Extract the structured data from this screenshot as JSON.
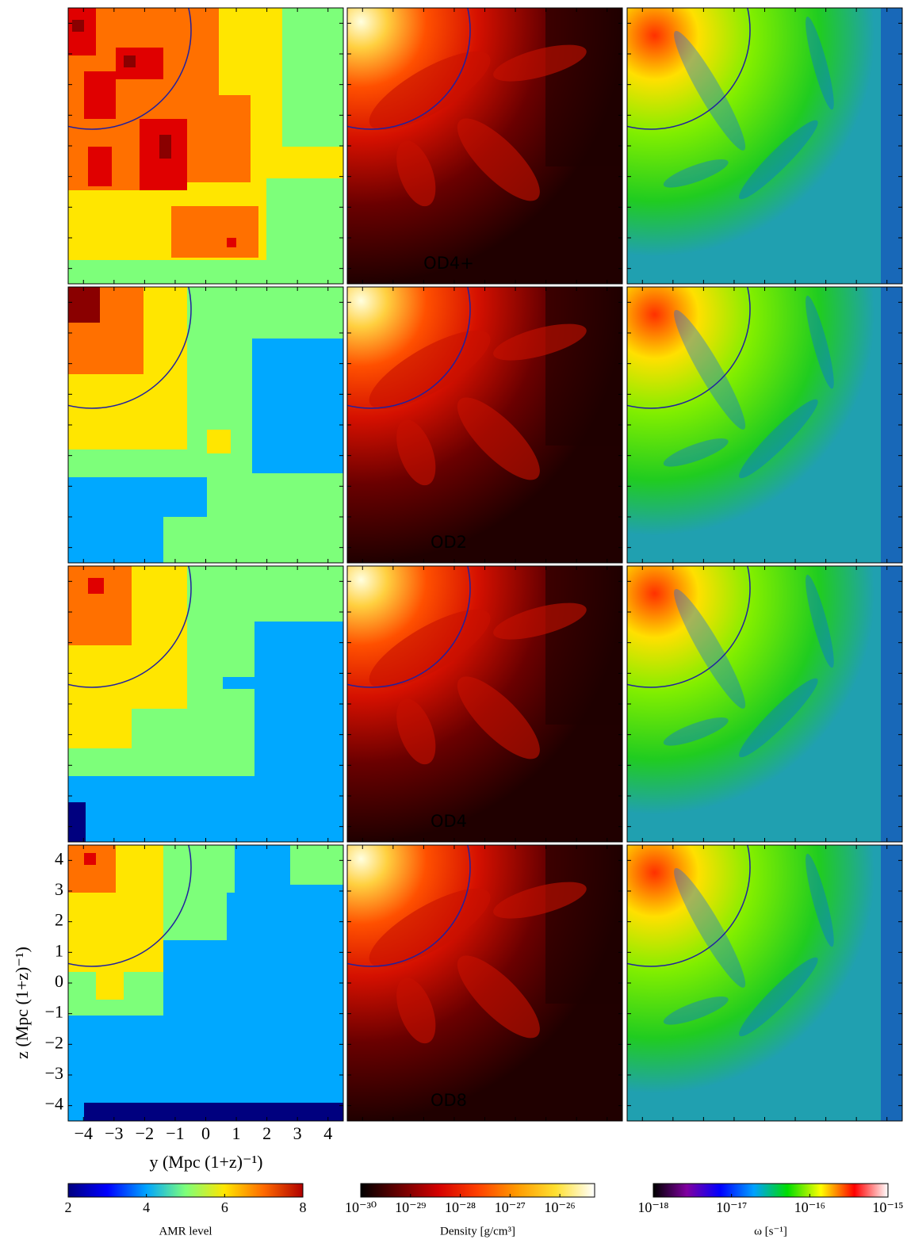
{
  "chart_data": {
    "type": "image-grid",
    "row_labels": [
      "OD4+",
      "OD2",
      "OD4",
      "OD8"
    ],
    "x_label": "y  (Mpc (1+z)⁻¹)",
    "y_label": "z  (Mpc (1+z)⁻¹)",
    "xlim": [
      -4.5,
      4.5
    ],
    "ylim": [
      -4.5,
      4.5
    ],
    "xticks": [
      {
        "value": -4,
        "label": "−4"
      },
      {
        "value": -3,
        "label": "−3"
      },
      {
        "value": -2,
        "label": "−2"
      },
      {
        "value": -1,
        "label": "−1"
      },
      0,
      1,
      2,
      3,
      4
    ],
    "yticks": [
      {
        "value": -4,
        "label": "−4"
      },
      {
        "value": -3,
        "label": "−3"
      },
      {
        "value": -2,
        "label": "−2"
      },
      {
        "value": -1,
        "label": "−1"
      },
      0,
      1,
      2,
      3,
      4
    ],
    "colorbars": [
      {
        "label": "AMR level",
        "log": false,
        "lim": [
          2,
          8
        ],
        "ticks": [
          2,
          4,
          6,
          8
        ],
        "colors": [
          "#00007f",
          "#0000ff",
          "#00a4ff",
          "#7dff7a",
          "#ffe600",
          "#ff6a00",
          "#b00000"
        ]
      },
      {
        "label": "Density [g/cm³]",
        "log": true,
        "lim": [
          1e-30,
          5e-26
        ],
        "ticks": [
          {
            "value": 1e-30,
            "label": "10⁻³⁰"
          },
          {
            "value": 1e-29,
            "label": "10⁻²⁹"
          },
          {
            "value": 1e-28,
            "label": "10⁻²⁸"
          },
          {
            "value": 1e-27,
            "label": "10⁻²⁷"
          },
          {
            "value": 1e-26,
            "label": "10⁻²⁶"
          }
        ],
        "colors": [
          "#000000",
          "#6a0000",
          "#d40000",
          "#ff4000",
          "#ff9a00",
          "#ffe030",
          "#ffffff"
        ]
      },
      {
        "label": "ω [s⁻¹]",
        "log": true,
        "lim": [
          1e-18,
          1e-15
        ],
        "ticks": [
          {
            "value": 1e-18,
            "label": "10⁻¹⁸"
          },
          {
            "value": 1e-17,
            "label": "10⁻¹⁷"
          },
          {
            "value": 1e-16,
            "label": "10⁻¹⁶"
          },
          {
            "value": 1e-15,
            "label": "10⁻¹⁵"
          }
        ],
        "colors": [
          "#000000",
          "#8000a0",
          "#0000ff",
          "#00a0ff",
          "#00dd00",
          "#ffff00",
          "#ff0000",
          "#ffffff"
        ]
      }
    ]
  }
}
